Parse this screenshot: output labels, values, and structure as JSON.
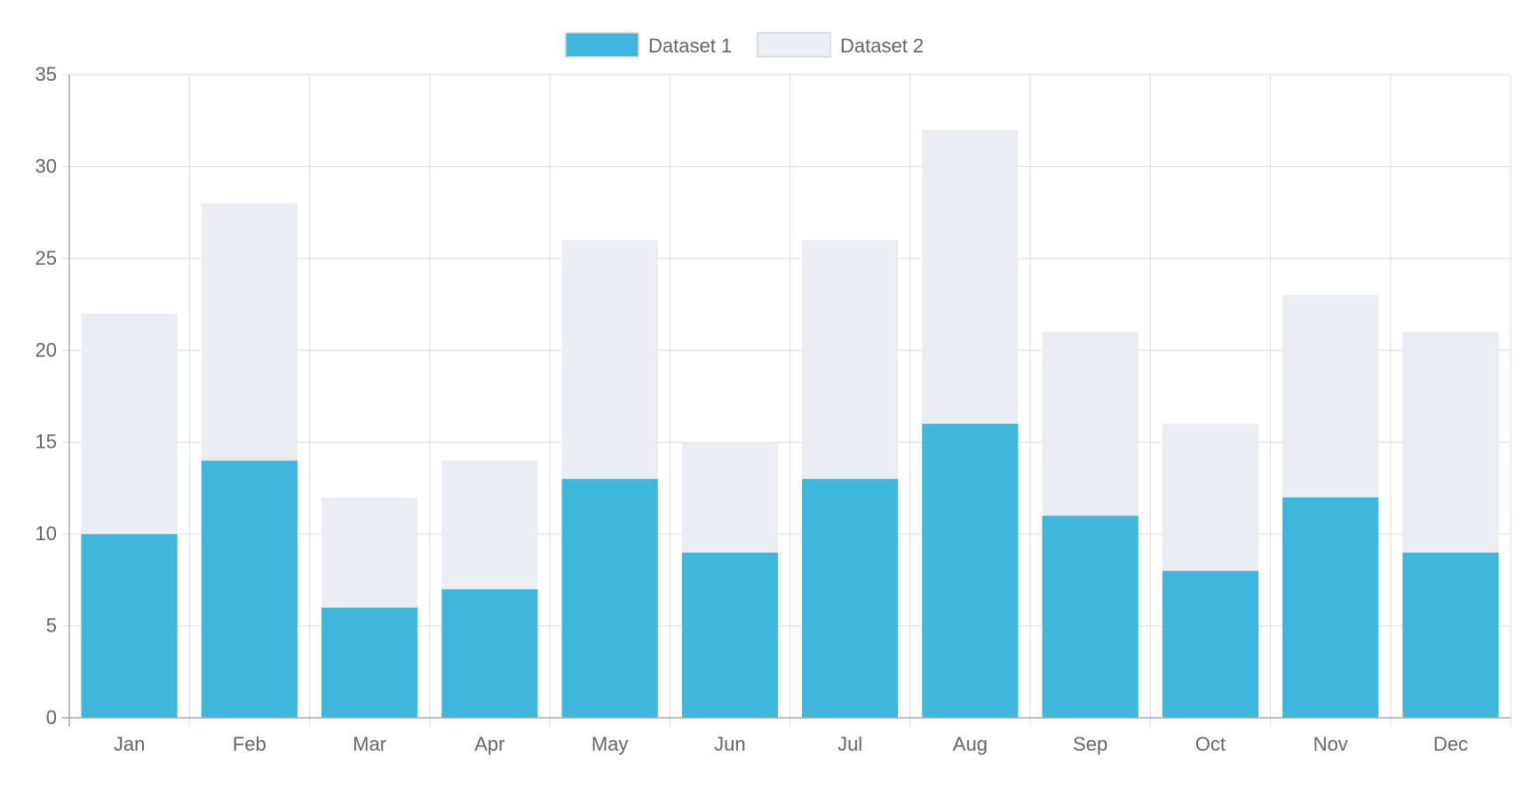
{
  "chart_data": {
    "type": "bar",
    "stacked": true,
    "categories": [
      "Jan",
      "Feb",
      "Mar",
      "Apr",
      "May",
      "Jun",
      "Jul",
      "Aug",
      "Sep",
      "Oct",
      "Nov",
      "Dec"
    ],
    "series": [
      {
        "name": "Dataset 1",
        "color": "#3fb7dd",
        "values": [
          10,
          14,
          6,
          7,
          13,
          9,
          13,
          16,
          11,
          8,
          12,
          9
        ]
      },
      {
        "name": "Dataset 2",
        "color": "#eaedf2",
        "values": [
          12,
          14,
          6,
          7,
          13,
          6,
          13,
          16,
          10,
          8,
          11,
          12
        ]
      }
    ],
    "ylim": [
      0,
      35
    ],
    "yticks": [
      0,
      5,
      10,
      15,
      20,
      25,
      30,
      35
    ],
    "grid": true,
    "legend_position": "top-center",
    "colors": {
      "grid": "#e3e3e3",
      "axis": "#a8a8a8",
      "text": "#666666",
      "legend_box_border": "#cfd6de"
    }
  }
}
